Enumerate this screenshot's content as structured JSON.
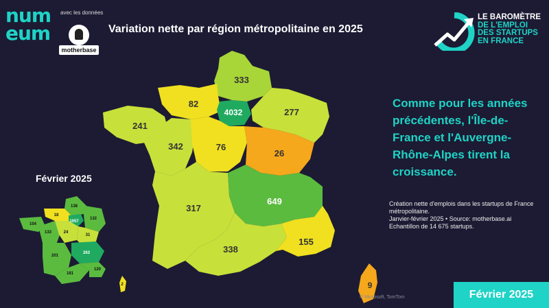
{
  "header": {
    "logo_line1": "num",
    "logo_line2": "eum",
    "avec_text": "avec les données",
    "motherbase_label": "motherbase",
    "title": "Variation nette par région métropolitaine en 2025",
    "barometre_lines": [
      "LE BAROMÈTRE",
      "DE L'EMPLOI",
      "DES STARTUPS",
      "EN FRANCE"
    ]
  },
  "headline": "Comme pour les années précédentes, l'Île-de-France et l'Auvergne-Rhône-Alpes tirent la croissance.",
  "caption": {
    "line1": "Création nette d'emplois dans les startups de France métropolitaine.",
    "line2": "Janvier-février 2025 • Source: motherbase.ai",
    "line3": "Echantillon de 14 675 startups."
  },
  "inset_title": "Février 2025",
  "badge": "Février 2025",
  "attribution": "© Microsoft, TomTom",
  "colors": {
    "background": "#1c1b33",
    "accent": "#1fd3c6",
    "dark_green": "#1faa60",
    "green": "#5bbb3f",
    "light_green": "#a8d538",
    "yellow_green": "#c8e03a",
    "yellow": "#f0e020",
    "orange": "#f5a81c"
  },
  "main_map": {
    "regions": [
      {
        "name": "Hauts-de-France",
        "value": "333"
      },
      {
        "name": "Normandie",
        "value": "82"
      },
      {
        "name": "Île-de-France",
        "value": "4032"
      },
      {
        "name": "Grand Est",
        "value": "277"
      },
      {
        "name": "Bretagne",
        "value": "241"
      },
      {
        "name": "Pays de la Loire",
        "value": "342"
      },
      {
        "name": "Centre-Val de Loire",
        "value": "76"
      },
      {
        "name": "Bourgogne-Franche-Comté",
        "value": "26"
      },
      {
        "name": "Auvergne-Rhône-Alpes",
        "value": "649"
      },
      {
        "name": "Nouvelle-Aquitaine",
        "value": "317"
      },
      {
        "name": "Occitanie",
        "value": "338"
      },
      {
        "name": "Provence-Alpes-Côte d'Azur",
        "value": "155"
      },
      {
        "name": "Corse",
        "value": "9"
      }
    ]
  },
  "inset_map": {
    "regions": [
      {
        "name": "Hauts-de-France",
        "value": "138"
      },
      {
        "name": "Normandie",
        "value": "18"
      },
      {
        "name": "Île-de-France",
        "value": "1057"
      },
      {
        "name": "Grand Est",
        "value": "132"
      },
      {
        "name": "Bretagne",
        "value": "104"
      },
      {
        "name": "Pays de la Loire",
        "value": "133"
      },
      {
        "name": "Centre-Val de Loire",
        "value": "24"
      },
      {
        "name": "Bourgogne-Franche-Comté",
        "value": "31"
      },
      {
        "name": "Auvergne-Rhône-Alpes",
        "value": "263"
      },
      {
        "name": "Nouvelle-Aquitaine",
        "value": "201"
      },
      {
        "name": "Occitanie",
        "value": "181"
      },
      {
        "name": "Provence-Alpes-Côte d'Azur",
        "value": "120"
      },
      {
        "name": "Corse",
        "value": "2"
      }
    ]
  }
}
